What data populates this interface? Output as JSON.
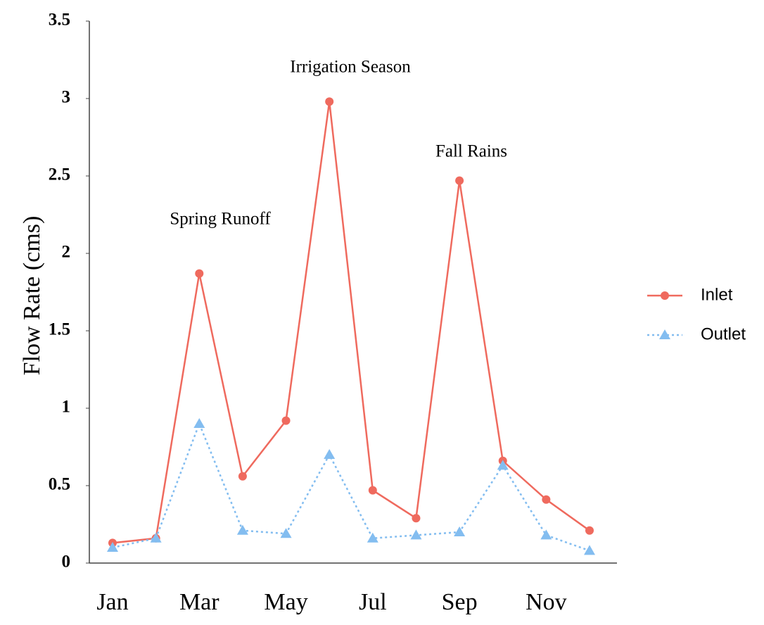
{
  "chart_data": {
    "type": "line",
    "categories": [
      "Jan",
      null,
      "Mar",
      null,
      "May",
      null,
      "Jul",
      null,
      "Sep",
      null,
      "Nov",
      null
    ],
    "series": [
      {
        "name": "Inlet",
        "color": "#ef6a5e",
        "line_style": "solid",
        "marker": "circle",
        "values": [
          0.13,
          0.16,
          1.87,
          0.56,
          0.92,
          2.98,
          0.47,
          0.29,
          2.47,
          0.66,
          0.41,
          0.21
        ]
      },
      {
        "name": "Outlet",
        "color": "#83bdf0",
        "line_style": "dotted",
        "marker": "triangle",
        "values": [
          0.1,
          0.16,
          0.9,
          0.21,
          0.19,
          0.7,
          0.16,
          0.18,
          0.2,
          0.63,
          0.18,
          0.08
        ]
      }
    ],
    "ylabel": "Flow Rate (cms)",
    "ylim": [
      0,
      3.5
    ],
    "yticks": [
      0,
      0.5,
      1,
      1.5,
      2,
      2.5,
      3,
      3.5
    ],
    "grid": false,
    "legend": "right",
    "annotations": [
      "Spring Runoff",
      "Irrigation Season",
      "Fall Rains"
    ]
  }
}
